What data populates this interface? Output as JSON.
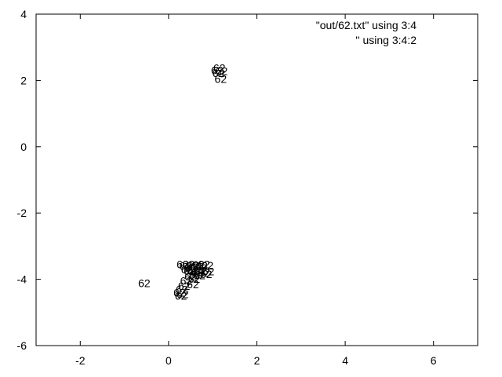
{
  "chart_data": {
    "type": "scatter",
    "title": "",
    "xlabel": "",
    "ylabel": "",
    "xlim": [
      -3,
      7
    ],
    "ylim": [
      -6,
      4
    ],
    "xticks": [
      -2,
      0,
      2,
      4,
      6
    ],
    "yticks": [
      -6,
      -4,
      -2,
      0,
      2,
      4
    ],
    "grid": false,
    "legend_position": "top-right",
    "colors": {
      "axis": "#000000",
      "points": "#ff0000",
      "labels": "#000000"
    },
    "series": [
      {
        "name": "\"out/62.txt\" using 3:4",
        "marker": "none",
        "points": []
      },
      {
        "name": "'' using 3:4:2",
        "marker": "label",
        "point_label": "62",
        "points": [
          [
            1.15,
            2.38
          ],
          [
            1.1,
            2.3
          ],
          [
            1.2,
            2.28
          ],
          [
            1.13,
            2.22
          ],
          [
            1.18,
            2.05
          ],
          [
            -0.55,
            -4.12
          ],
          [
            0.32,
            -3.55
          ],
          [
            0.38,
            -3.6
          ],
          [
            0.45,
            -3.55
          ],
          [
            0.5,
            -3.65
          ],
          [
            0.55,
            -3.58
          ],
          [
            0.62,
            -3.62
          ],
          [
            0.68,
            -3.56
          ],
          [
            0.75,
            -3.6
          ],
          [
            0.8,
            -3.55
          ],
          [
            0.88,
            -3.58
          ],
          [
            0.42,
            -3.7
          ],
          [
            0.48,
            -3.75
          ],
          [
            0.55,
            -3.72
          ],
          [
            0.65,
            -3.78
          ],
          [
            0.72,
            -3.74
          ],
          [
            0.8,
            -3.8
          ],
          [
            0.9,
            -3.76
          ],
          [
            0.6,
            -3.85
          ],
          [
            0.7,
            -3.88
          ],
          [
            0.85,
            -3.84
          ],
          [
            0.5,
            -3.92
          ],
          [
            0.58,
            -3.98
          ],
          [
            0.4,
            -4.05
          ],
          [
            0.55,
            -4.15
          ],
          [
            0.35,
            -4.2
          ],
          [
            0.3,
            -4.3
          ],
          [
            0.25,
            -4.4
          ],
          [
            0.32,
            -4.45
          ],
          [
            0.28,
            -4.5
          ]
        ]
      }
    ]
  }
}
